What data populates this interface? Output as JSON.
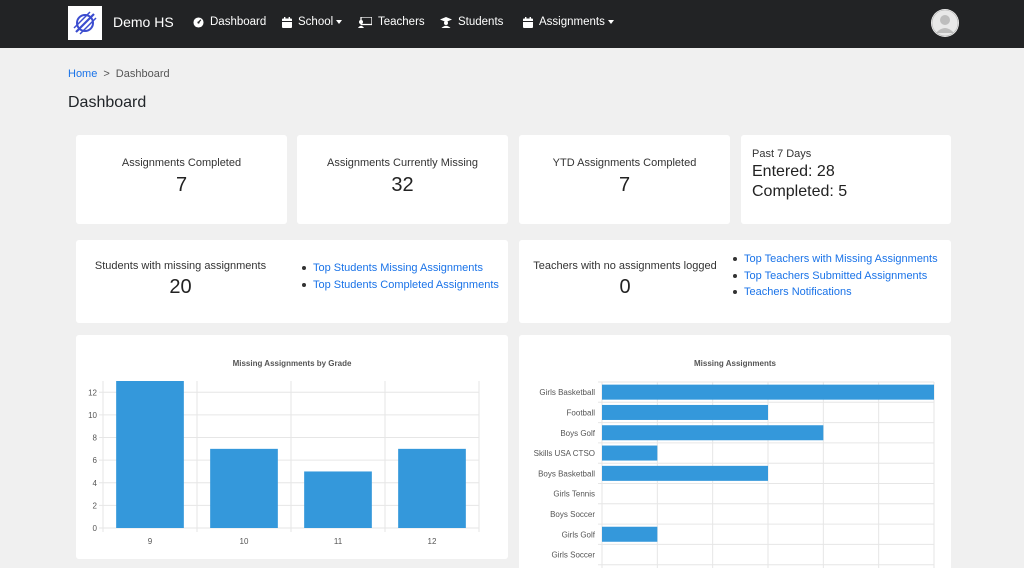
{
  "app": {
    "brand": "Demo HS"
  },
  "nav": [
    {
      "label": "Dashboard",
      "icon": "dashboard-icon",
      "dropdown": false
    },
    {
      "label": "School",
      "icon": "calendar-icon",
      "dropdown": true
    },
    {
      "label": "Teachers",
      "icon": "teacher-icon",
      "dropdown": false
    },
    {
      "label": "Students",
      "icon": "student-icon",
      "dropdown": false
    },
    {
      "label": "Assignments",
      "icon": "calendar-icon",
      "dropdown": true
    }
  ],
  "breadcrumb": {
    "home": "Home",
    "separator": ">",
    "current": "Dashboard"
  },
  "page": {
    "title": "Dashboard"
  },
  "stats": [
    {
      "label": "Assignments Completed",
      "value": "7"
    },
    {
      "label": "Assignments Currently Missing",
      "value": "32"
    },
    {
      "label": "YTD Assignments Completed",
      "value": "7"
    }
  ],
  "past7": {
    "title": "Past 7 Days",
    "entered": "Entered: 28",
    "completed": "Completed: 5"
  },
  "students_card": {
    "label": "Students with missing assignments",
    "value": "20",
    "links": [
      "Top Students Missing Assignments",
      "Top Students Completed Assignments"
    ]
  },
  "teachers_card": {
    "label": "Teachers with no assignments logged",
    "value": "0",
    "links": [
      "Top Teachers with Missing Assignments",
      "Top Teachers Submitted Assignments",
      "Teachers Notifications"
    ]
  },
  "colors": {
    "navbar": "#222325",
    "bar": "#3498db",
    "link": "#1a73e8"
  },
  "chart_data": [
    {
      "type": "bar",
      "title": "Missing Assignments by Grade",
      "categories": [
        "9",
        "10",
        "11",
        "12"
      ],
      "values": [
        13,
        7,
        5,
        7
      ],
      "ylim": [
        0,
        13
      ],
      "yticks": [
        0,
        2,
        4,
        6,
        8,
        10,
        12
      ],
      "grid": true
    },
    {
      "type": "bar",
      "orientation": "horizontal",
      "title": "Missing Assignments",
      "categories": [
        "Girls Basketball",
        "Football",
        "Boys Golf",
        "Skills USA CTSO",
        "Boys Basketball",
        "Girls Tennis",
        "Boys Soccer",
        "Girls Golf",
        "Girls Soccer"
      ],
      "values": [
        6,
        3,
        4,
        1,
        3,
        0,
        0,
        1,
        0
      ],
      "xlim": [
        0,
        6
      ],
      "grid": true
    }
  ]
}
